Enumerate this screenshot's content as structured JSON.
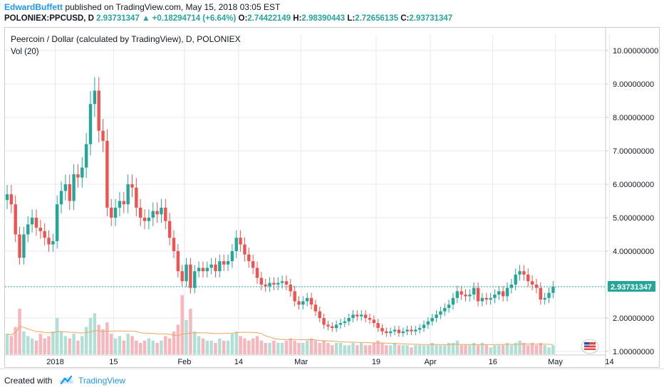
{
  "header": {
    "author": "EdwardBuffett",
    "published": " published on TradingView.com, May 15, 2018 03:05 EST",
    "symbol": "POLONIEX:PPCUSD, D",
    "last": "2.93731347",
    "change": "▲ +0.18294714 (+6.64%)",
    "o_label": "O:",
    "o": "2.74422149",
    "h_label": "H:",
    "h": "2.98390443",
    "l_label": "L:",
    "l": "2.72656135",
    "c_label": "C:",
    "c": "2.93731347"
  },
  "footer": {
    "created_with": "Created with",
    "brand": "TradingView"
  },
  "colors": {
    "up": "#26a69a",
    "down": "#ef5350",
    "vol_up": "#b2dfd4",
    "vol_down": "#f7b6bc",
    "vol_ma": "#f0a35e",
    "grid": "#e6e9ef",
    "price_line": "#26a69a"
  },
  "chart_data": {
    "type": "candlestick",
    "title": "Peercoin / Dollar (calculated by TradingView), D, POLONIEX",
    "subtitle": "Vol (20)",
    "y_ticks": [
      "10.00000000",
      "9.00000000",
      "8.00000000",
      "7.00000000",
      "6.00000000",
      "5.00000000",
      "4.00000000",
      "2.00000000",
      "1.00000000"
    ],
    "y_tick_values": [
      10,
      9,
      8,
      7,
      6,
      5,
      4,
      2,
      1
    ],
    "x_ticks": [
      "2018",
      "15",
      "Feb",
      "14",
      "Mar",
      "19",
      "Apr",
      "16",
      "May",
      "14"
    ],
    "x_tick_dates": [
      "2018-01-01",
      "2018-01-15",
      "2018-02-01",
      "2018-02-14",
      "2018-03-01",
      "2018-03-19",
      "2018-04-01",
      "2018-04-16",
      "2018-05-01",
      "2018-05-14"
    ],
    "last_price_label": "2.93731347",
    "last_price": 2.937,
    "start_date": "2017-12-22",
    "ylim": [
      0.8,
      10.5
    ],
    "closes": [
      5.7,
      5.4,
      4.5,
      3.8,
      4.5,
      4.8,
      5.0,
      4.7,
      4.6,
      4.4,
      4.2,
      4.3,
      5.4,
      5.8,
      6.0,
      5.5,
      6.3,
      6.2,
      6.5,
      7.2,
      8.4,
      8.8,
      7.6,
      7.3,
      5.3,
      5.0,
      5.3,
      5.5,
      5.4,
      6.0,
      5.9,
      5.3,
      5.0,
      4.9,
      5.0,
      5.2,
      5.1,
      5.3,
      4.9,
      4.4,
      4.0,
      3.4,
      3.1,
      3.6,
      2.9,
      3.4,
      3.5,
      3.4,
      3.5,
      3.6,
      3.4,
      3.7,
      3.6,
      3.7,
      4.0,
      4.4,
      4.2,
      3.9,
      3.7,
      3.5,
      3.2,
      3.0,
      2.95,
      3.05,
      3.0,
      3.05,
      3.1,
      3.0,
      2.8,
      2.5,
      2.4,
      2.5,
      2.6,
      2.4,
      2.2,
      2.0,
      1.8,
      1.75,
      1.7,
      1.8,
      1.85,
      1.9,
      2.0,
      2.1,
      2.05,
      2.1,
      2.0,
      1.95,
      1.85,
      1.7,
      1.6,
      1.55,
      1.6,
      1.65,
      1.55,
      1.6,
      1.65,
      1.6,
      1.65,
      1.7,
      1.8,
      1.9,
      2.0,
      2.1,
      2.2,
      2.3,
      2.4,
      2.6,
      2.8,
      2.7,
      2.65,
      2.7,
      2.9,
      2.5,
      2.6,
      2.55,
      2.6,
      2.7,
      2.8,
      2.65,
      2.9,
      3.0,
      3.3,
      3.4,
      3.3,
      3.1,
      3.0,
      2.9,
      2.55,
      2.6,
      2.75,
      2.94
    ],
    "volumes": [
      0.9,
      0.8,
      1.2,
      2.0,
      1.0,
      0.8,
      0.7,
      0.6,
      0.9,
      0.7,
      0.8,
      1.0,
      1.6,
      1.0,
      0.8,
      0.7,
      0.9,
      0.6,
      0.8,
      1.2,
      1.6,
      1.8,
      1.3,
      1.1,
      1.4,
      0.9,
      0.7,
      0.8,
      0.6,
      0.9,
      0.8,
      0.6,
      0.5,
      0.6,
      0.7,
      0.6,
      0.5,
      0.6,
      0.8,
      0.7,
      1.0,
      1.3,
      2.6,
      1.5,
      2.0,
      1.0,
      0.8,
      0.7,
      0.6,
      0.6,
      0.5,
      0.7,
      0.6,
      0.6,
      0.9,
      1.0,
      0.8,
      0.7,
      0.6,
      0.7,
      0.8,
      0.6,
      0.5,
      0.5,
      0.6,
      0.5,
      0.5,
      0.6,
      0.7,
      0.6,
      0.5,
      0.5,
      0.6,
      0.7,
      0.6,
      0.5,
      0.6,
      0.5,
      0.4,
      0.5,
      0.5,
      0.4,
      0.4,
      0.5,
      0.4,
      0.5,
      0.4,
      0.4,
      0.5,
      0.6,
      0.5,
      0.4,
      0.4,
      0.5,
      0.4,
      0.4,
      0.4,
      0.3,
      0.4,
      0.4,
      0.4,
      0.4,
      0.5,
      0.4,
      0.4,
      0.4,
      0.5,
      0.5,
      0.6,
      0.4,
      0.4,
      0.4,
      0.5,
      0.4,
      0.5,
      0.4,
      0.3,
      0.4,
      0.4,
      0.4,
      0.5,
      0.4,
      0.5,
      0.6,
      0.5,
      0.4,
      0.5,
      0.4,
      0.5,
      0.4,
      0.3,
      0.4
    ]
  }
}
